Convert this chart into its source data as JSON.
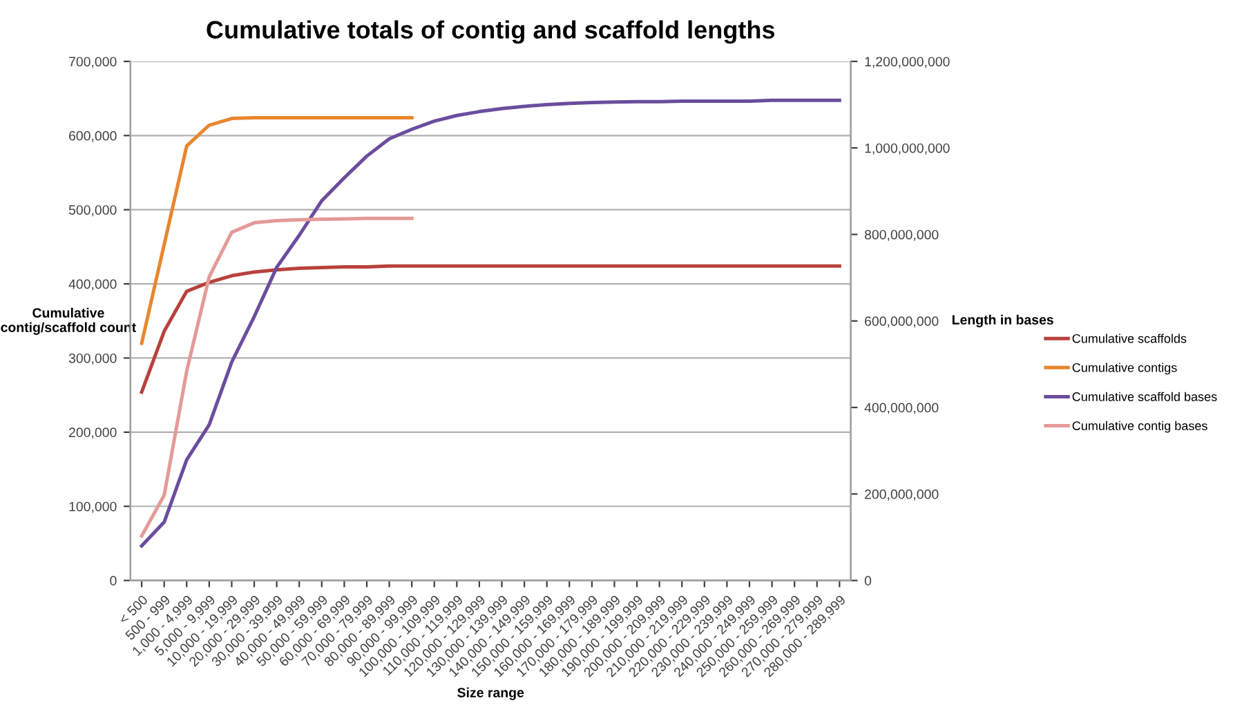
{
  "chart_data": {
    "type": "line",
    "title": "Cumulative totals of contig and scaffold lengths",
    "xlabel": "Size range",
    "ylabel": "Cumulative\ncontig/scaffold count",
    "y2label": "Length in bases",
    "categories": [
      "< 500",
      "500 - 999",
      "1,000 - 4,999",
      "5,000 - 9,999",
      "10,000 - 19,999",
      "20,000 - 29,999",
      "30,000 - 39,999",
      "40,000 - 49,999",
      "50,000 - 59,999",
      "60,000 - 69,999",
      "70,000 - 79,999",
      "80,000 - 89,999",
      "90,000 - 99,999",
      "100,000 - 109,999",
      "110,000 - 119,999",
      "120,000 - 129,999",
      "130,000 - 139,999",
      "140,000 - 149,999",
      "150,000 - 159,999",
      "160,000 - 169,999",
      "170,000 - 179,999",
      "180,000 - 189,999",
      "190,000 - 199,999",
      "200,000 - 209,999",
      "210,000 - 219,999",
      "220,000 - 229,999",
      "230,000 - 239,999",
      "240,000 - 249,999",
      "250,000 - 259,999",
      "260,000 - 269,999",
      "270,000 - 279,999",
      "280,000 - 289,999"
    ],
    "series": [
      {
        "name": "Cumulative scaffolds",
        "color": "#b8413c",
        "values": [
          254000,
          336000,
          390000,
          402000,
          411000,
          416000,
          419000,
          421000,
          422000,
          423000,
          423000,
          424000,
          424000,
          424000,
          424000,
          424000,
          424000,
          424000,
          424000,
          424000,
          424000,
          424000,
          424000,
          424000,
          424000,
          424000,
          424000,
          424000,
          424000,
          424000,
          424000,
          424000
        ]
      },
      {
        "name": "Cumulative contigs",
        "color": "#e8872e",
        "values": [
          320000,
          453000,
          586000,
          614000,
          623000,
          624000,
          624000,
          624000,
          624000,
          624000,
          624000,
          624000,
          624000,
          null,
          null,
          null,
          null,
          null,
          null,
          null,
          null,
          null,
          null,
          null,
          null,
          null,
          null,
          null,
          null,
          null,
          null,
          null
        ]
      },
      {
        "name": "Cumulative scaffold bases",
        "color": "#6b4d9e",
        "axis": "y2",
        "values": [
          80000000,
          135000000,
          279000000,
          360000000,
          505000000,
          610000000,
          724000000,
          798000000,
          878000000,
          931000000,
          981000000,
          1021000000,
          1043000000,
          1062000000,
          1075000000,
          1084000000,
          1091000000,
          1096000000,
          1100000000,
          1103000000,
          1105000000,
          1106000000,
          1107000000,
          1107000000,
          1108000000,
          1108000000,
          1108000000,
          1108000000,
          1110000000,
          1110000000,
          1110000000,
          1110000000
        ]
      },
      {
        "name": "Cumulative contig bases",
        "color": "#e39a98",
        "axis": "y2",
        "values": [
          103000000,
          197000000,
          484000000,
          702000000,
          805000000,
          827000000,
          832000000,
          834000000,
          835000000,
          836000000,
          837000000,
          837000000,
          837000000,
          null,
          null,
          null,
          null,
          null,
          null,
          null,
          null,
          null,
          null,
          null,
          null,
          null,
          null,
          null,
          null,
          null,
          null,
          null
        ]
      }
    ],
    "ylim": [
      0,
      700000
    ],
    "yticks": [
      0,
      {
        "value": 100000,
        "label": "100,000"
      },
      {
        "value": 200000,
        "label": "200,000"
      },
      {
        "value": 300000,
        "label": "300,000"
      },
      {
        "value": 400000,
        "label": "400,000"
      },
      {
        "value": 500000,
        "label": "500,000"
      },
      {
        "value": 600000,
        "label": "600,000"
      },
      {
        "value": 700000,
        "label": "700,000"
      }
    ],
    "y2lim": [
      0,
      1200000000
    ],
    "y2ticks": [
      0,
      {
        "value": 200000000,
        "label": "200,000,000"
      },
      {
        "value": 400000000,
        "label": "400,000,000"
      },
      {
        "value": 600000000,
        "label": "600,000,000"
      },
      {
        "value": 800000000,
        "label": "800,000,000"
      },
      {
        "value": 1000000000,
        "label": "1,000,000,000"
      },
      {
        "value": 1200000000,
        "label": "1,200,000,000"
      }
    ],
    "grid": "y",
    "legend": "right",
    "marker": "none",
    "line_style": "solid"
  }
}
